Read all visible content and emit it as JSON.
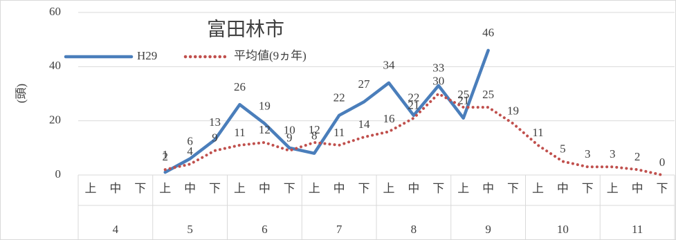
{
  "chart_data": {
    "type": "line",
    "title": "富田林市",
    "y_label": "(頭)",
    "categories": [
      "上",
      "中",
      "下",
      "上",
      "中",
      "下",
      "上",
      "中",
      "下",
      "上",
      "中",
      "下",
      "上",
      "中",
      "下",
      "上",
      "中",
      "下",
      "上",
      "中",
      "下",
      "上",
      "中",
      "下"
    ],
    "category_groups": [
      "4",
      "5",
      "6",
      "7",
      "8",
      "9",
      "10",
      "11"
    ],
    "series": [
      {
        "name": "H29",
        "color": "#4a7ebb",
        "style": "solid",
        "values": [
          null,
          null,
          null,
          1,
          6,
          13,
          26,
          19,
          10,
          8,
          22,
          27,
          34,
          22,
          33,
          21,
          46,
          null,
          null,
          null,
          null,
          null,
          null,
          null
        ]
      },
      {
        "name": "平均値(9ヵ年)",
        "color": "#c0504d",
        "style": "dotted",
        "values": [
          null,
          null,
          null,
          2,
          4,
          9,
          11,
          12,
          9,
          12,
          11,
          14,
          16,
          21,
          30,
          25,
          25,
          19,
          11,
          5,
          3,
          3,
          2,
          0
        ]
      }
    ],
    "ylim": [
      0,
      60
    ],
    "yticks": [
      0,
      20,
      40,
      60
    ],
    "grid": true,
    "data_labels": true
  }
}
